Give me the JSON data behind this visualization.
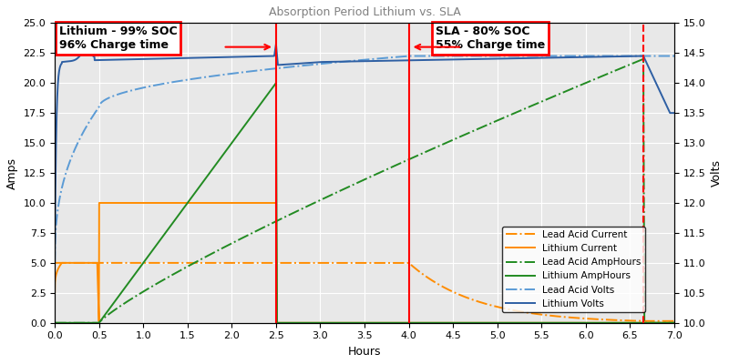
{
  "title": "Absorption Period Lithium vs. SLA",
  "xlabel": "Hours",
  "ylabel_left": "Amps",
  "ylabel_right": "Volts",
  "xlim": [
    0.0,
    7.0
  ],
  "ylim_left": [
    0.0,
    25.0
  ],
  "ylim_right": [
    10.0,
    15.0
  ],
  "xticks": [
    0.0,
    0.5,
    1.0,
    1.5,
    2.0,
    2.5,
    3.0,
    3.5,
    4.0,
    4.5,
    5.0,
    5.5,
    6.0,
    6.5,
    7.0
  ],
  "yticks_left": [
    0.0,
    2.5,
    5.0,
    7.5,
    10.0,
    12.5,
    15.0,
    17.5,
    20.0,
    22.5,
    25.0
  ],
  "yticks_right": [
    10.0,
    10.5,
    11.0,
    11.5,
    12.0,
    12.5,
    13.0,
    13.5,
    14.0,
    14.5,
    15.0
  ],
  "vline1_x": 2.5,
  "vline2_x": 4.0,
  "vline3_x": 6.65,
  "annotation1_text": "Lithium - 99% SOC\n96% Charge time",
  "annotation2_text": "SLA - 80% SOC\n55% Charge time",
  "lead_acid_current_color": "#FF8C00",
  "lithium_current_color": "#FF8C00",
  "lead_acid_amphours_color": "#228B22",
  "lithium_amphours_color": "#228B22",
  "lead_acid_volts_color": "#5B9BD5",
  "lithium_volts_color": "#2E5FA3",
  "vline_color": "red",
  "legend_labels": [
    "Lead Acid Current",
    "Lithium Current",
    "Lead Acid AmpHours",
    "Lithium AmpHours",
    "Lead Acid Volts",
    "Lithium Volts"
  ]
}
